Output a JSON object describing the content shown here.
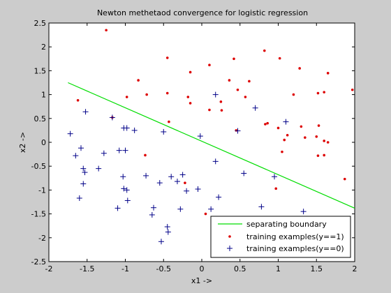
{
  "chart_data": {
    "type": "scatter",
    "title": "Newton methetaod convergence for logistic regression",
    "xlabel": "x1 ->",
    "ylabel": "x2 ->",
    "xlim": [
      -2,
      2
    ],
    "ylim": [
      -2.5,
      2.5
    ],
    "xticks": [
      "-2",
      "-1.5",
      "-1",
      "-0.5",
      "0",
      "0.5",
      "1",
      "1.5",
      "2"
    ],
    "yticks": [
      "-2.5",
      "-2",
      "-1.5",
      "-1",
      "-0.5",
      "0",
      "0.5",
      "1",
      "1.5",
      "2",
      "2.5"
    ],
    "legend": {
      "placement": "bottom-right",
      "entries": [
        "separating boundary",
        "training examples(y==1)",
        "training examples(y==0)"
      ]
    },
    "boundary": {
      "color": "#00dd00",
      "x": [
        -1.75,
        2.0
      ],
      "y": [
        1.25,
        -1.38
      ]
    },
    "series": [
      {
        "marker": "dot",
        "color": "#dd0000",
        "points": [
          [
            -1.25,
            2.35
          ],
          [
            -0.45,
            1.77
          ],
          [
            0.42,
            1.75
          ],
          [
            0.1,
            1.62
          ],
          [
            0.82,
            1.92
          ],
          [
            1.02,
            1.76
          ],
          [
            1.28,
            1.55
          ],
          [
            -0.15,
            1.47
          ],
          [
            -0.83,
            1.3
          ],
          [
            0.36,
            1.3
          ],
          [
            0.62,
            1.28
          ],
          [
            1.65,
            1.45
          ],
          [
            -0.98,
            0.95
          ],
          [
            -0.72,
            1.0
          ],
          [
            -0.45,
            1.03
          ],
          [
            -0.18,
            0.95
          ],
          [
            0.25,
            0.85
          ],
          [
            0.47,
            1.1
          ],
          [
            0.57,
            0.95
          ],
          [
            1.2,
            1.0
          ],
          [
            1.52,
            1.03
          ],
          [
            1.6,
            1.05
          ],
          [
            1.97,
            1.1
          ],
          [
            0.1,
            0.68
          ],
          [
            0.26,
            0.67
          ],
          [
            -0.15,
            0.82
          ],
          [
            -1.62,
            0.88
          ],
          [
            -1.17,
            0.52
          ],
          [
            0.45,
            0.25
          ],
          [
            0.83,
            0.38
          ],
          [
            0.86,
            0.4
          ],
          [
            1.0,
            0.3
          ],
          [
            1.08,
            0.05
          ],
          [
            1.12,
            0.15
          ],
          [
            1.3,
            0.33
          ],
          [
            1.35,
            0.1
          ],
          [
            1.5,
            0.12
          ],
          [
            1.53,
            0.35
          ],
          [
            1.6,
            0.03
          ],
          [
            1.65,
            0.0
          ],
          [
            1.6,
            -0.27
          ],
          [
            1.52,
            -0.28
          ],
          [
            1.05,
            -0.2
          ],
          [
            0.97,
            -0.97
          ],
          [
            1.87,
            -0.77
          ],
          [
            -0.43,
            0.43
          ],
          [
            -0.74,
            -0.27
          ],
          [
            -0.22,
            -0.85
          ],
          [
            0.05,
            -1.5
          ]
        ]
      },
      {
        "marker": "plus",
        "color": "#000088",
        "points": [
          [
            -1.72,
            0.18
          ],
          [
            -1.65,
            -0.28
          ],
          [
            -1.58,
            -0.12
          ],
          [
            -1.55,
            -0.55
          ],
          [
            -1.53,
            -0.63
          ],
          [
            -1.55,
            -0.87
          ],
          [
            -1.6,
            -1.17
          ],
          [
            -1.52,
            0.64
          ],
          [
            -1.17,
            0.52
          ],
          [
            -1.02,
            0.3
          ],
          [
            -0.98,
            0.3
          ],
          [
            -1.0,
            -0.17
          ],
          [
            -0.88,
            0.25
          ],
          [
            -1.08,
            -0.17
          ],
          [
            -1.28,
            -0.23
          ],
          [
            -1.35,
            -0.55
          ],
          [
            -1.03,
            -0.72
          ],
          [
            -1.02,
            -0.97
          ],
          [
            -0.98,
            -1.0
          ],
          [
            -1.1,
            -1.38
          ],
          [
            -0.97,
            -1.22
          ],
          [
            -0.73,
            -0.7
          ],
          [
            -0.55,
            -0.85
          ],
          [
            -0.5,
            0.22
          ],
          [
            -0.32,
            -0.82
          ],
          [
            -0.4,
            -0.72
          ],
          [
            -0.25,
            -0.68
          ],
          [
            -0.2,
            -1.02
          ],
          [
            -0.02,
            0.13
          ],
          [
            -0.05,
            -0.98
          ],
          [
            0.12,
            -1.4
          ],
          [
            0.22,
            -1.15
          ],
          [
            0.18,
            -0.4
          ],
          [
            0.18,
            1.0
          ],
          [
            0.47,
            0.24
          ],
          [
            0.7,
            0.72
          ],
          [
            0.55,
            -0.65
          ],
          [
            0.95,
            -0.72
          ],
          [
            1.1,
            0.43
          ],
          [
            1.33,
            -1.45
          ],
          [
            -0.63,
            -1.37
          ],
          [
            -0.65,
            -1.52
          ],
          [
            -0.45,
            -1.77
          ],
          [
            -0.44,
            -1.88
          ],
          [
            -0.28,
            -1.4
          ],
          [
            -0.53,
            -2.08
          ],
          [
            0.78,
            -1.35
          ]
        ]
      }
    ]
  }
}
